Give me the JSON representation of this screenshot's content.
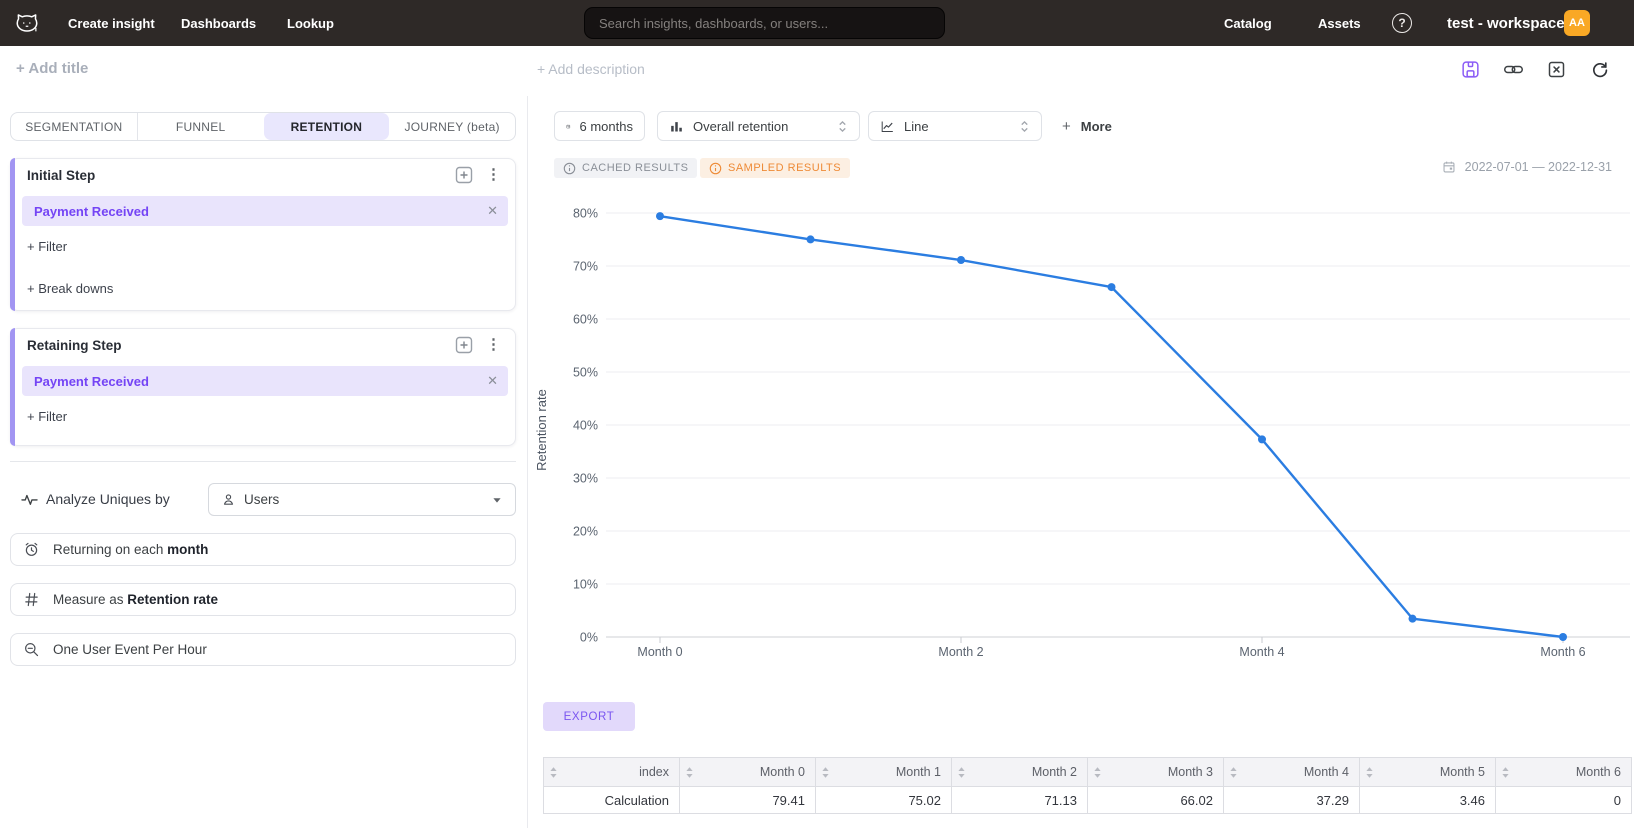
{
  "navbar": {
    "left_items": [
      "Create insight",
      "Dashboards",
      "Lookup"
    ],
    "search_placeholder": "Search insights, dashboards, or users...",
    "right_items": [
      "Catalog",
      "Assets"
    ],
    "help_label": "?",
    "workspace": "test - workspace",
    "avatar_initials": "AA"
  },
  "header_row": {
    "add_title": "+ Add title",
    "add_description": "+ Add description"
  },
  "sidebar": {
    "tabs": [
      {
        "label": "SEGMENTATION",
        "selected": false
      },
      {
        "label": "FUNNEL",
        "selected": false
      },
      {
        "label": "RETENTION",
        "selected": true
      },
      {
        "label": "JOURNEY (beta)",
        "selected": false
      }
    ],
    "initial_step": {
      "title": "Initial Step",
      "event": "Payment Received",
      "filter_label": "+ Filter",
      "breakdowns_label": "+ Break downs"
    },
    "retaining_step": {
      "title": "Retaining Step",
      "event": "Payment Received",
      "filter_label": "+ Filter"
    },
    "analyze_label": "Analyze Uniques by",
    "analyze_value": "Users",
    "returning_prefix": "Returning on each ",
    "returning_bold": "month",
    "measure_prefix": "Measure as ",
    "measure_bold": "Retention rate",
    "one_event_label": "One User Event Per Hour"
  },
  "query_toolbar": {
    "date_range_button": "6 months",
    "retention_select": "Overall retention",
    "chart_type_select": "Line",
    "more_plus": "+",
    "more_label": "More"
  },
  "status_row": {
    "cached_badge": "CACHED RESULTS",
    "sampled_badge": "SAMPLED RESULTS",
    "date_range": "2022-07-01 — 2022-12-31"
  },
  "chart_data": {
    "type": "line",
    "x_categories": [
      "Month 0",
      "Month 1",
      "Month 2",
      "Month 3",
      "Month 4",
      "Month 5",
      "Month 6"
    ],
    "series": [
      {
        "name": "Retention rate",
        "values": [
          79.41,
          75.02,
          71.13,
          66.02,
          37.29,
          3.46,
          0
        ]
      }
    ],
    "ylabel": "Retention rate",
    "ylim": [
      0,
      85
    ],
    "yticks_percent": [
      0,
      10,
      20,
      30,
      40,
      50,
      60,
      70,
      80
    ],
    "x_axis_shown_labels": [
      "Month 0",
      "Month 2",
      "Month 4",
      "Month 6"
    ],
    "x_axis_shown_indices": [
      0,
      2,
      4,
      6
    ],
    "grid": true,
    "legend": false,
    "line_color": "#2b7de1"
  },
  "export_label": "EXPORT",
  "table": {
    "columns": [
      "index",
      "Month 0",
      "Month 1",
      "Month 2",
      "Month 3",
      "Month 4",
      "Month 5",
      "Month 6"
    ],
    "rows": [
      [
        "Calculation",
        "79.41",
        "75.02",
        "71.13",
        "66.02",
        "37.29",
        "3.46",
        "0"
      ]
    ]
  },
  "colors": {
    "navbar_bg": "#2e2927",
    "accent_purple": "#8b5cf6",
    "event_pill_bg": "#e9e4fc",
    "event_pill_text": "#7444f5",
    "selected_tab_bg": "#e9e7fd",
    "line_blue": "#2b7de1",
    "sampled_orange": "#ee8a36",
    "cached_gray": "#8a8f97",
    "avatar_orange": "#f9a825",
    "export_bg": "#e2d9fb",
    "export_text": "#7a55f0"
  }
}
